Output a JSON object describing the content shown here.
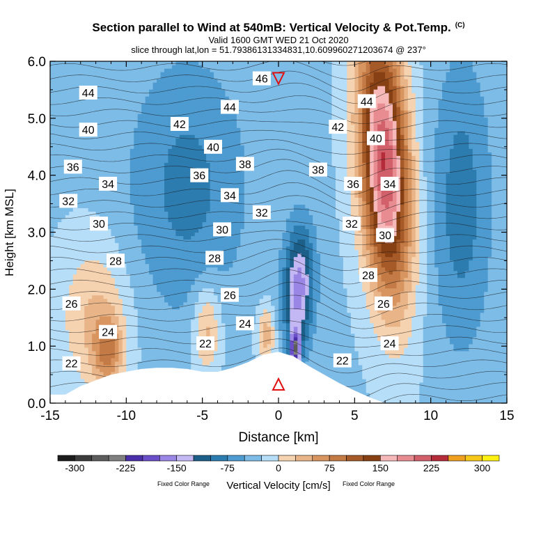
{
  "title": "Section parallel to Wind at 540mB: Vertical Velocity & Pot.Temp.",
  "title_mark": "(C)",
  "valid_line": "Valid 1600 GMT WED 21 Oct 2020",
  "slice_line": "slice through lat,lon = 51.79386131334831,10.609960271203674 @ 237°",
  "colorbar_note_left": "Fixed Color Range",
  "colorbar_note_right": "Fixed Color Range",
  "chart_data": {
    "type": "heatmap",
    "xlabel": "Distance [km]",
    "ylabel": "Height [km MSL]",
    "xlim": [
      -15,
      15
    ],
    "ylim": [
      0,
      6
    ],
    "x_ticks": [
      -15,
      -10,
      -5,
      0,
      5,
      10,
      15
    ],
    "x_tick_labels": [
      "-15",
      "-10",
      "-5",
      "0",
      "5",
      "10",
      "15"
    ],
    "y_ticks": [
      0,
      1,
      2,
      3,
      4,
      5,
      6
    ],
    "y_tick_labels": [
      "0.0",
      "1.0",
      "2.0",
      "3.0",
      "4.0",
      "5.0",
      "6.0"
    ],
    "colorbar": {
      "title": "Vertical Velocity [cm/s]",
      "levels": [
        -325,
        -300,
        -275,
        -250,
        -225,
        -200,
        -175,
        -150,
        -125,
        -100,
        -75,
        -50,
        -25,
        0,
        25,
        50,
        75,
        100,
        125,
        150,
        175,
        200,
        225,
        250,
        275,
        300,
        325
      ],
      "colors": [
        "#1c1c1c",
        "#3c3c3c",
        "#5c5c5c",
        "#808080",
        "#4a2fa8",
        "#6a4fc8",
        "#9a86e4",
        "#c4b8f4",
        "#1c5f88",
        "#2d7cb0",
        "#4d9bd0",
        "#7ebce8",
        "#b6def8",
        "#f6d3b0",
        "#e9b588",
        "#d89560",
        "#c47a44",
        "#a65a28",
        "#874014",
        "#f6b8b8",
        "#e88c92",
        "#d2606a",
        "#b42c3a",
        "#f0a020",
        "#f8c818",
        "#fef010"
      ],
      "tick_values": [
        -300,
        -225,
        -150,
        -75,
        0,
        75,
        150,
        225,
        300
      ],
      "tick_labels": [
        "-300",
        "-225",
        "-150",
        "-75",
        "0",
        "75",
        "150",
        "225",
        "300"
      ]
    },
    "contour_labels": [
      {
        "text": "44",
        "x": -12.5,
        "y": 5.45
      },
      {
        "text": "40",
        "x": -12.5,
        "y": 4.8
      },
      {
        "text": "36",
        "x": -13.5,
        "y": 4.15
      },
      {
        "text": "34",
        "x": -11.2,
        "y": 3.85
      },
      {
        "text": "32",
        "x": -13.8,
        "y": 3.55
      },
      {
        "text": "30",
        "x": -11.8,
        "y": 3.15
      },
      {
        "text": "28",
        "x": -10.7,
        "y": 2.5
      },
      {
        "text": "26",
        "x": -13.6,
        "y": 1.75
      },
      {
        "text": "24",
        "x": -11.2,
        "y": 1.25
      },
      {
        "text": "22",
        "x": -13.6,
        "y": 0.7
      },
      {
        "text": "46",
        "x": -1.1,
        "y": 5.7
      },
      {
        "text": "44",
        "x": -3.2,
        "y": 5.2
      },
      {
        "text": "42",
        "x": -6.5,
        "y": 4.9
      },
      {
        "text": "40",
        "x": -4.3,
        "y": 4.5
      },
      {
        "text": "38",
        "x": -2.2,
        "y": 4.2
      },
      {
        "text": "36",
        "x": -5.2,
        "y": 4.0
      },
      {
        "text": "34",
        "x": -3.2,
        "y": 3.65
      },
      {
        "text": "32",
        "x": -1.1,
        "y": 3.35
      },
      {
        "text": "30",
        "x": -3.7,
        "y": 3.05
      },
      {
        "text": "28",
        "x": -4.2,
        "y": 2.55
      },
      {
        "text": "26",
        "x": -3.2,
        "y": 1.9
      },
      {
        "text": "24",
        "x": -2.2,
        "y": 1.4
      },
      {
        "text": "22",
        "x": -4.8,
        "y": 1.05
      },
      {
        "text": "22",
        "x": 4.2,
        "y": 0.75
      },
      {
        "text": "38",
        "x": 2.6,
        "y": 4.1
      },
      {
        "text": "42",
        "x": 3.9,
        "y": 4.85
      },
      {
        "text": "44",
        "x": 5.8,
        "y": 5.3
      },
      {
        "text": "40",
        "x": 6.4,
        "y": 4.65
      },
      {
        "text": "36",
        "x": 4.9,
        "y": 3.85
      },
      {
        "text": "34",
        "x": 7.3,
        "y": 3.85
      },
      {
        "text": "32",
        "x": 4.8,
        "y": 3.15
      },
      {
        "text": "30",
        "x": 7.0,
        "y": 2.95
      },
      {
        "text": "28",
        "x": 5.9,
        "y": 2.25
      },
      {
        "text": "26",
        "x": 6.9,
        "y": 1.75
      },
      {
        "text": "24",
        "x": 7.3,
        "y": 1.05
      }
    ],
    "markers": [
      {
        "label": "down-triangle",
        "x": 0,
        "y": 5.7,
        "color": "#e01010"
      },
      {
        "label": "up-triangle",
        "x": 0,
        "y": 0.33,
        "color": "#e01010"
      }
    ],
    "terrain_km": [
      {
        "x": -15,
        "y": 0.15
      },
      {
        "x": -14,
        "y": 0.15
      },
      {
        "x": -13,
        "y": 0.3
      },
      {
        "x": -12,
        "y": 0.4
      },
      {
        "x": -11,
        "y": 0.5
      },
      {
        "x": -10,
        "y": 0.55
      },
      {
        "x": -9,
        "y": 0.6
      },
      {
        "x": -8,
        "y": 0.62
      },
      {
        "x": -7,
        "y": 0.62
      },
      {
        "x": -6,
        "y": 0.6
      },
      {
        "x": -5,
        "y": 0.55
      },
      {
        "x": -4,
        "y": 0.55
      },
      {
        "x": -3,
        "y": 0.62
      },
      {
        "x": -2,
        "y": 0.72
      },
      {
        "x": -1,
        "y": 0.85
      },
      {
        "x": 0,
        "y": 0.9
      },
      {
        "x": 1,
        "y": 0.82
      },
      {
        "x": 2,
        "y": 0.65
      },
      {
        "x": 3,
        "y": 0.5
      },
      {
        "x": 4,
        "y": 0.35
      },
      {
        "x": 5,
        "y": 0.22
      },
      {
        "x": 6,
        "y": 0.1
      },
      {
        "x": 7,
        "y": 0.0
      },
      {
        "x": 15,
        "y": 0.0
      }
    ]
  }
}
